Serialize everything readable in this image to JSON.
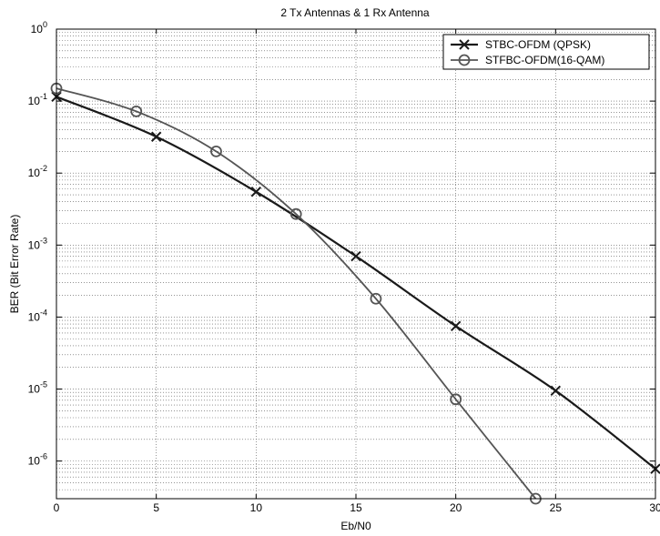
{
  "chart_data": {
    "type": "line",
    "title": "2 Tx Antennas & 1 Rx Antenna",
    "xlabel": "Eb/N0",
    "ylabel": "BER (Bit Error Rate)",
    "xlim": [
      0,
      30
    ],
    "ylim": [
      3e-07,
      1
    ],
    "yscale": "log",
    "grid": true,
    "legend_position": "top-right",
    "x_ticks": [
      0,
      5,
      10,
      15,
      20,
      25,
      30
    ],
    "x_tick_labels": [
      "0",
      "5",
      "10",
      "15",
      "20",
      "25",
      "30"
    ],
    "y_ticks": [
      {
        "exp": 0,
        "label_base": "10",
        "label_exp": "0"
      },
      {
        "exp": -1,
        "label_base": "10",
        "label_exp": "-1"
      },
      {
        "exp": -2,
        "label_base": "10",
        "label_exp": "-2"
      },
      {
        "exp": -3,
        "label_base": "10",
        "label_exp": "-3"
      },
      {
        "exp": -4,
        "label_base": "10",
        "label_exp": "-4"
      },
      {
        "exp": -5,
        "label_base": "10",
        "label_exp": "-5"
      },
      {
        "exp": -6,
        "label_base": "10",
        "label_exp": "-6"
      }
    ],
    "series": [
      {
        "name": "STBC-OFDM (QPSK)",
        "marker": "x",
        "color": "#1a1a1a",
        "line_width": 2.2,
        "x": [
          0,
          5,
          10,
          15,
          20,
          25,
          30
        ],
        "y": [
          0.115,
          0.032,
          0.0055,
          0.0007,
          7.5e-05,
          9.5e-06,
          7.8e-07
        ]
      },
      {
        "name": "STFBC-OFDM(16-QAM)",
        "marker": "o",
        "color": "#555555",
        "line_width": 1.8,
        "x": [
          0,
          4,
          8,
          12,
          16,
          20,
          24
        ],
        "y": [
          0.15,
          0.072,
          0.02,
          0.0027,
          0.00018,
          7.2e-06,
          3e-07
        ]
      }
    ]
  }
}
